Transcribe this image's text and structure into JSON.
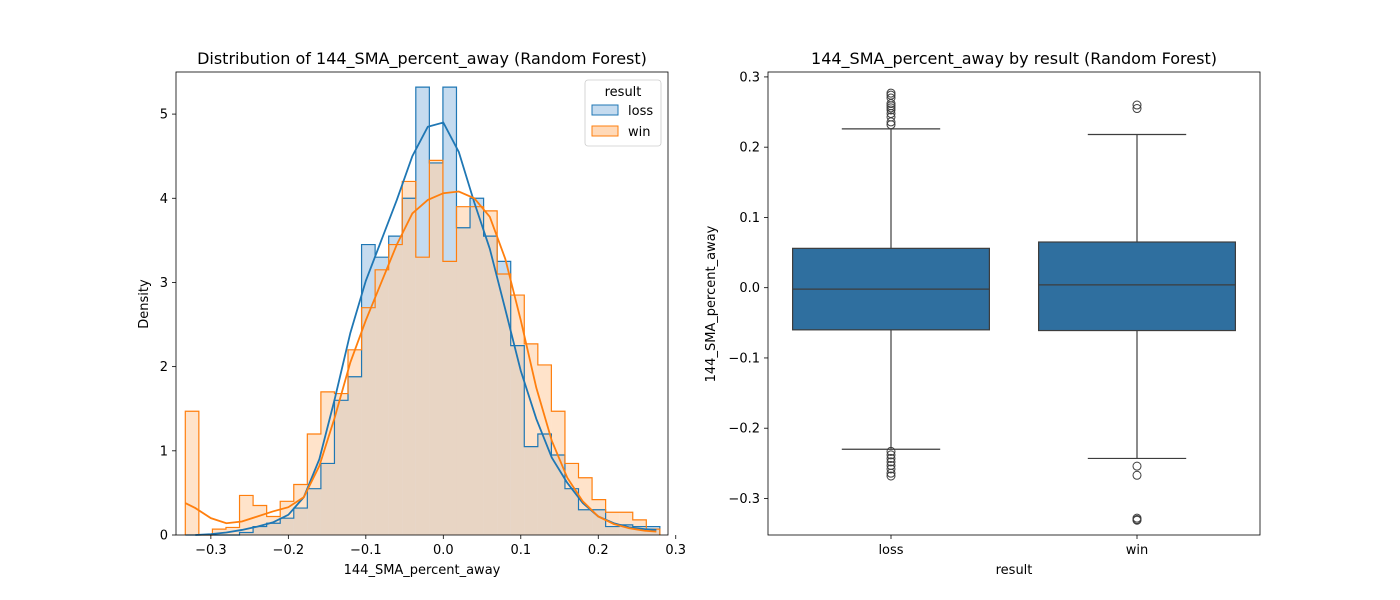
{
  "figure": {
    "left_title": "Distribution of 144_SMA_percent_away (Random Forest)",
    "right_title": "144_SMA_percent_away by result (Random Forest)"
  },
  "chart_data": [
    {
      "type": "histogram",
      "title": "Distribution of 144_SMA_percent_away (Random Forest)",
      "xlabel": "144_SMA_percent_away",
      "ylabel": "Density",
      "xlim": [
        -0.345,
        0.29
      ],
      "ylim": [
        0,
        5.5
      ],
      "xticks": [
        -0.3,
        -0.2,
        -0.1,
        0.0,
        0.1,
        0.2,
        0.3
      ],
      "xtick_labels": [
        "−0.3",
        "−0.2",
        "−0.1",
        "0.0",
        "0.1",
        "0.2",
        "0.3"
      ],
      "yticks": [
        0,
        1,
        2,
        3,
        4,
        5
      ],
      "ytick_labels": [
        "0",
        "1",
        "2",
        "3",
        "4",
        "5"
      ],
      "legend_title": "result",
      "legend_position": "top-right",
      "bin_edges": [
        -0.333,
        -0.3155,
        -0.298,
        -0.2805,
        -0.263,
        -0.2455,
        -0.228,
        -0.2105,
        -0.193,
        -0.1755,
        -0.158,
        -0.1405,
        -0.123,
        -0.1055,
        -0.088,
        -0.0705,
        -0.053,
        -0.0355,
        -0.018,
        -0.0005,
        0.017,
        0.0345,
        0.052,
        0.0695,
        0.087,
        0.1045,
        0.122,
        0.1395,
        0.157,
        0.1745,
        0.192,
        0.2095,
        0.227,
        0.2445,
        0.262,
        0.2795
      ],
      "series": [
        {
          "name": "loss",
          "color": "#1f77b4",
          "fill": "#a6c8e6",
          "counts": [
            0,
            0,
            0,
            0,
            0.03,
            0.1,
            0.14,
            0.2,
            0.32,
            0.55,
            0.85,
            1.6,
            1.88,
            3.45,
            3.3,
            3.55,
            4.0,
            5.32,
            4.42,
            5.32,
            3.65,
            4.0,
            3.55,
            3.25,
            2.25,
            1.05,
            1.2,
            0.95,
            0.55,
            0.3,
            0.3,
            0.1,
            0.12,
            0.1,
            0.1
          ],
          "kde_x": [
            -0.32,
            -0.3,
            -0.28,
            -0.26,
            -0.24,
            -0.22,
            -0.2,
            -0.18,
            -0.16,
            -0.14,
            -0.12,
            -0.1,
            -0.08,
            -0.06,
            -0.04,
            -0.02,
            0.0,
            0.02,
            0.04,
            0.06,
            0.08,
            0.1,
            0.12,
            0.14,
            0.16,
            0.18,
            0.2,
            0.22,
            0.24,
            0.26,
            0.275
          ],
          "kde_y": [
            0.0,
            0.01,
            0.03,
            0.06,
            0.1,
            0.15,
            0.24,
            0.45,
            0.9,
            1.62,
            2.4,
            3.02,
            3.5,
            3.98,
            4.5,
            4.85,
            4.9,
            4.55,
            3.95,
            3.4,
            2.68,
            1.95,
            1.38,
            0.92,
            0.62,
            0.38,
            0.22,
            0.14,
            0.09,
            0.07,
            0.06
          ]
        },
        {
          "name": "win",
          "color": "#ff7f0e",
          "fill": "#ffd0a6",
          "counts": [
            1.47,
            0,
            0.07,
            0.09,
            0.47,
            0.35,
            0.22,
            0.4,
            0.6,
            1.2,
            1.7,
            1.68,
            2.2,
            2.7,
            3.15,
            3.45,
            4.2,
            3.3,
            4.45,
            3.25,
            3.9,
            3.9,
            3.85,
            3.1,
            2.85,
            2.27,
            2.02,
            1.47,
            0.85,
            0.68,
            0.42,
            0.27,
            0.27,
            0.18,
            0.07
          ],
          "kde_x": [
            -0.333,
            -0.32,
            -0.3,
            -0.28,
            -0.26,
            -0.24,
            -0.22,
            -0.2,
            -0.18,
            -0.16,
            -0.14,
            -0.12,
            -0.1,
            -0.08,
            -0.06,
            -0.04,
            -0.02,
            0.0,
            0.02,
            0.04,
            0.06,
            0.08,
            0.1,
            0.12,
            0.14,
            0.16,
            0.18,
            0.2,
            0.22,
            0.24,
            0.26,
            0.275
          ],
          "kde_y": [
            0.38,
            0.32,
            0.2,
            0.14,
            0.16,
            0.22,
            0.28,
            0.33,
            0.45,
            0.82,
            1.4,
            2.05,
            2.55,
            3.0,
            3.45,
            3.82,
            3.98,
            4.06,
            4.08,
            4.0,
            3.78,
            3.28,
            2.55,
            1.75,
            1.12,
            0.68,
            0.4,
            0.22,
            0.13,
            0.08,
            0.05,
            0.04
          ]
        }
      ]
    },
    {
      "type": "boxplot",
      "title": "144_SMA_percent_away by result (Random Forest)",
      "xlabel": "result",
      "ylabel": "144_SMA_percent_away",
      "ylim": [
        -0.352,
        0.307
      ],
      "yticks": [
        -0.3,
        -0.2,
        -0.1,
        0.0,
        0.1,
        0.2,
        0.3
      ],
      "ytick_labels": [
        "−0.3",
        "−0.2",
        "−0.1",
        "0.0",
        "0.1",
        "0.2",
        "0.3"
      ],
      "categories": [
        "loss",
        "win"
      ],
      "box_color": "#2f6f9f",
      "boxes": [
        {
          "name": "loss",
          "q1": -0.06,
          "median": -0.002,
          "q3": 0.056,
          "whisker_low": -0.23,
          "whisker_high": 0.226,
          "outliers": [
            0.232,
            0.236,
            0.243,
            0.248,
            0.253,
            0.256,
            0.259,
            0.262,
            0.27,
            0.274,
            0.277,
            -0.233,
            -0.238,
            -0.243,
            -0.248,
            -0.253,
            -0.258,
            -0.264,
            -0.268
          ]
        },
        {
          "name": "win",
          "q1": -0.061,
          "median": 0.004,
          "q3": 0.065,
          "whisker_low": -0.243,
          "whisker_high": 0.218,
          "outliers": [
            0.255,
            0.26,
            -0.254,
            -0.267,
            -0.328,
            -0.33,
            -0.331
          ]
        }
      ]
    }
  ]
}
